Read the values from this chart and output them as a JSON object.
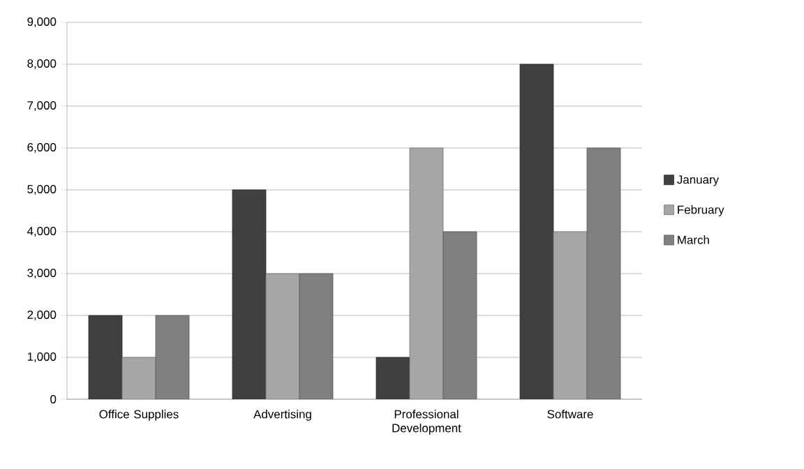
{
  "chart_data": {
    "type": "bar",
    "categories": [
      "Office Supplies",
      "Advertising",
      "Professional Development",
      "Software"
    ],
    "series": [
      {
        "name": "January",
        "color": "#404040",
        "values": [
          2000,
          5000,
          1000,
          8000
        ]
      },
      {
        "name": "February",
        "color": "#a6a6a6",
        "values": [
          1000,
          3000,
          6000,
          4000
        ]
      },
      {
        "name": "March",
        "color": "#7f7f7f",
        "values": [
          2000,
          3000,
          4000,
          6000
        ]
      }
    ],
    "ylim": [
      0,
      9000
    ],
    "yticks": [
      {
        "value": 0,
        "label": "0"
      },
      {
        "value": 1000,
        "label": "1,000"
      },
      {
        "value": 2000,
        "label": "2,000"
      },
      {
        "value": 3000,
        "label": "3,000"
      },
      {
        "value": 4000,
        "label": "4,000"
      },
      {
        "value": 5000,
        "label": "5,000"
      },
      {
        "value": 6000,
        "label": "6,000"
      },
      {
        "value": 7000,
        "label": "7,000"
      },
      {
        "value": 8000,
        "label": "8,000"
      },
      {
        "value": 9000,
        "label": "9,000"
      }
    ],
    "grid": "y",
    "legend": "right"
  }
}
